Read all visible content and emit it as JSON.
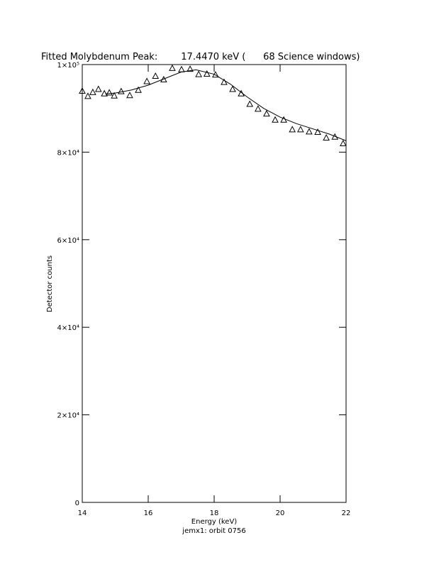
{
  "chart_data": {
    "type": "scatter",
    "title": "Fitted Molybdenum Peak:        17.4470 keV (      68 Science windows)",
    "x_label": "Energy (keV)",
    "x_sublabel": "jemx1: orbit 0756",
    "y_label": "Detector counts",
    "xlim": [
      14,
      22
    ],
    "xticks": [
      14,
      16,
      18,
      20,
      22
    ],
    "ylim": [
      0,
      100000
    ],
    "yticks": [
      {
        "value": 0,
        "label": "0"
      },
      {
        "value": 20000,
        "label": "2×10⁴"
      },
      {
        "value": 40000,
        "label": "4×10⁴"
      },
      {
        "value": 60000,
        "label": "6×10⁴"
      },
      {
        "value": 80000,
        "label": "8×10⁴"
      },
      {
        "value": 100000,
        "label": "1×10⁵"
      }
    ],
    "points": {
      "x": [
        14.0,
        14.17,
        14.32,
        14.49,
        14.67,
        14.82,
        14.97,
        15.18,
        15.44,
        15.7,
        15.96,
        16.22,
        16.47,
        16.73,
        17.01,
        17.27,
        17.53,
        17.78,
        18.04,
        18.3,
        18.56,
        18.82,
        19.08,
        19.33,
        19.59,
        19.85,
        20.11,
        20.37,
        20.62,
        20.88,
        21.14,
        21.4,
        21.66,
        21.91
      ],
      "values": [
        94000,
        92800,
        93700,
        94400,
        93400,
        93600,
        92900,
        93900,
        93000,
        94200,
        96200,
        97400,
        96600,
        99200,
        98900,
        99000,
        97800,
        97900,
        97700,
        96000,
        94400,
        93400,
        91000,
        89900,
        88800,
        87400,
        87400,
        85200,
        85200,
        84700,
        84600,
        83300,
        83500,
        82000
      ]
    },
    "fit": {
      "x": [
        14.7,
        15.0,
        15.5,
        16.0,
        16.5,
        17.0,
        17.45,
        18.0,
        18.5,
        19.0,
        19.5,
        20.0,
        20.5,
        21.0,
        21.5,
        22.0
      ],
      "values": [
        93300,
        93500,
        94200,
        95300,
        96800,
        98300,
        98800,
        97800,
        95500,
        92600,
        90000,
        88000,
        86500,
        85300,
        84100,
        82600
      ]
    }
  }
}
